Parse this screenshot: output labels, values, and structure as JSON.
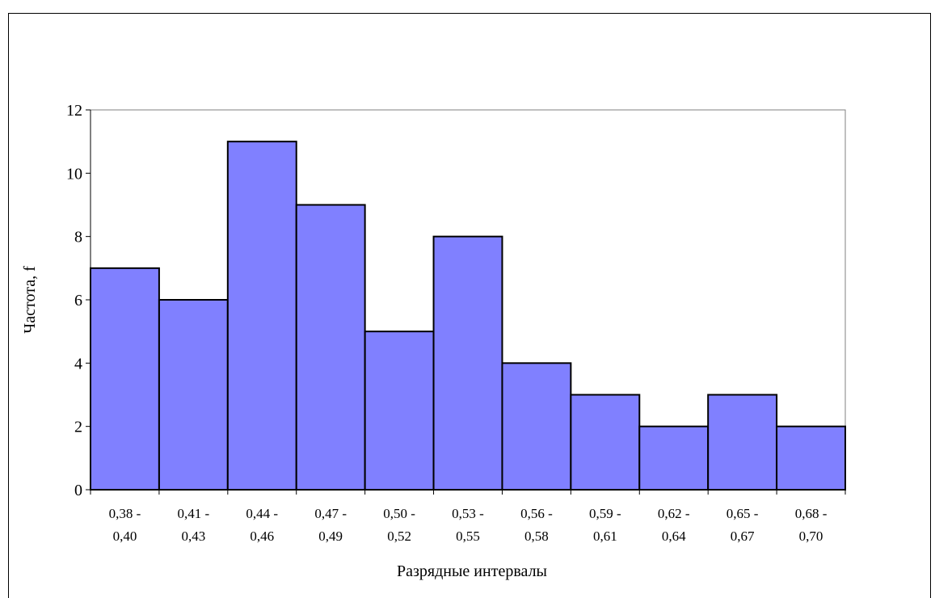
{
  "colors": {
    "bar_fill": "#8080ff",
    "bar_stroke": "#000000",
    "plot_border": "#808080",
    "axis": "#000000"
  },
  "chart_data": {
    "type": "bar",
    "categories": [
      [
        "0,38 -",
        "0,40"
      ],
      [
        "0,41 -",
        "0,43"
      ],
      [
        "0,44 -",
        "0,46"
      ],
      [
        "0,47 -",
        "0,49"
      ],
      [
        "0,50 -",
        "0,52"
      ],
      [
        "0,53 -",
        "0,55"
      ],
      [
        "0,56 -",
        "0,58"
      ],
      [
        "0,59 -",
        "0,61"
      ],
      [
        "0,62 -",
        "0,64"
      ],
      [
        "0,65 -",
        "0,67"
      ],
      [
        "0,68 -",
        "0,70"
      ]
    ],
    "values": [
      7,
      6,
      11,
      9,
      5,
      8,
      4,
      3,
      2,
      3,
      2
    ],
    "xlabel": "Разрядные интервалы",
    "ylabel": "Частота, f",
    "ylim": [
      0,
      12
    ],
    "yticks": [
      0,
      2,
      4,
      6,
      8,
      10,
      12
    ],
    "grid": false,
    "legend": "none"
  }
}
